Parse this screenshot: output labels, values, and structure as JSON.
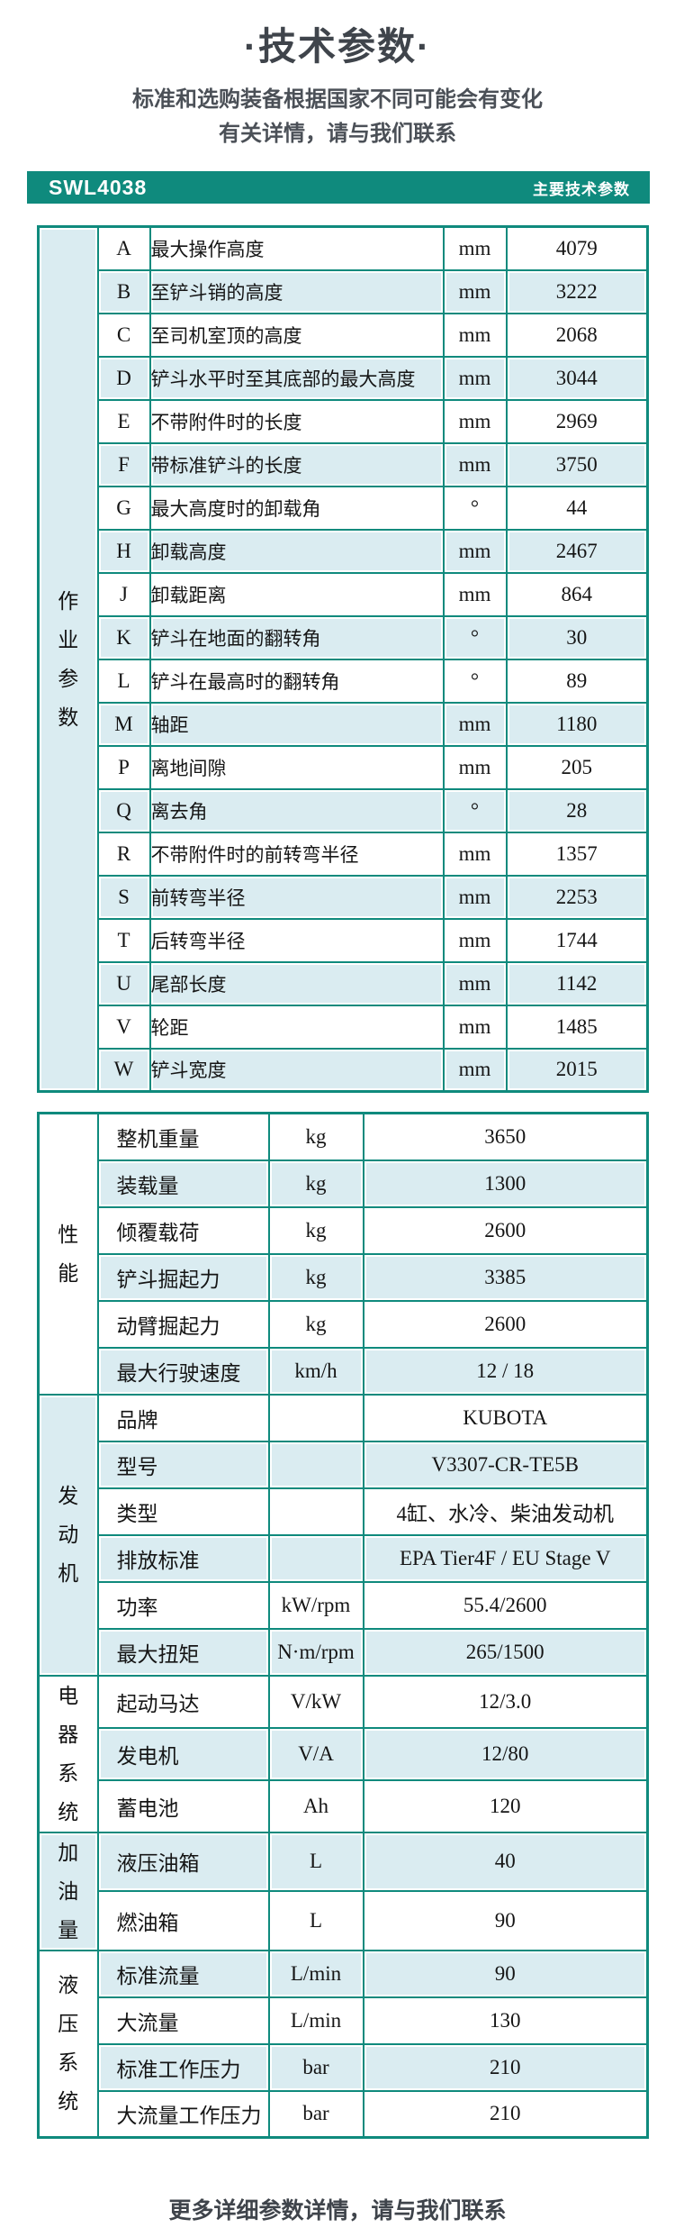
{
  "title": "·技术参数·",
  "subtitle_lines": [
    "标准和选购装备根据国家不同可能会有变化",
    "有关详情，请与我们联系"
  ],
  "header_bar": {
    "model": "SWL4038",
    "caption": "主要技术参数"
  },
  "colors": {
    "accent_teal": "#0f8a7d",
    "row_stripe_blue": "#daecf1",
    "row_plain_white": "#ffffff",
    "bar_text": "#ffffff",
    "heading_text": "#3f444b",
    "table_text": "#151515"
  },
  "operating_table": {
    "section_label": "作业参数",
    "rows": [
      {
        "letter": "A",
        "name": "最大操作高度",
        "unit": "mm",
        "value": "4079"
      },
      {
        "letter": "B",
        "name": "至铲斗销的高度",
        "unit": "mm",
        "value": "3222"
      },
      {
        "letter": "C",
        "name": "至司机室顶的高度",
        "unit": "mm",
        "value": "2068"
      },
      {
        "letter": "D",
        "name": "铲斗水平时至其底部的最大高度",
        "unit": "mm",
        "value": "3044"
      },
      {
        "letter": "E",
        "name": "不带附件时的长度",
        "unit": "mm",
        "value": "2969"
      },
      {
        "letter": "F",
        "name": "带标准铲斗的长度",
        "unit": "mm",
        "value": "3750"
      },
      {
        "letter": "G",
        "name": "最大高度时的卸载角",
        "unit": "°",
        "value": "44"
      },
      {
        "letter": "H",
        "name": "卸载高度",
        "unit": "mm",
        "value": "2467"
      },
      {
        "letter": "J",
        "name": "卸载距离",
        "unit": "mm",
        "value": "864"
      },
      {
        "letter": "K",
        "name": "铲斗在地面的翻转角",
        "unit": "°",
        "value": "30"
      },
      {
        "letter": "L",
        "name": "铲斗在最高时的翻转角",
        "unit": "°",
        "value": "89"
      },
      {
        "letter": "M",
        "name": "轴距",
        "unit": "mm",
        "value": "1180"
      },
      {
        "letter": "P",
        "name": "离地间隙",
        "unit": "mm",
        "value": "205"
      },
      {
        "letter": "Q",
        "name": "离去角",
        "unit": "°",
        "value": "28"
      },
      {
        "letter": "R",
        "name": "不带附件时的前转弯半径",
        "unit": "mm",
        "value": "1357"
      },
      {
        "letter": "S",
        "name": "前转弯半径",
        "unit": "mm",
        "value": "2253"
      },
      {
        "letter": "T",
        "name": "后转弯半径",
        "unit": "mm",
        "value": "1744"
      },
      {
        "letter": "U",
        "name": "尾部长度",
        "unit": "mm",
        "value": "1142"
      },
      {
        "letter": "V",
        "name": "轮距",
        "unit": "mm",
        "value": "1485"
      },
      {
        "letter": "W",
        "name": "铲斗宽度",
        "unit": "mm",
        "value": "2015"
      }
    ]
  },
  "spec_table": {
    "sections": [
      {
        "label": "性能",
        "rows": [
          {
            "name": "整机重量",
            "unit": "kg",
            "value": "3650"
          },
          {
            "name": "装载量",
            "unit": "kg",
            "value": "1300"
          },
          {
            "name": "倾覆载荷",
            "unit": "kg",
            "value": "2600"
          },
          {
            "name": "铲斗掘起力",
            "unit": "kg",
            "value": "3385"
          },
          {
            "name": "动臂掘起力",
            "unit": "kg",
            "value": "2600"
          },
          {
            "name": "最大行驶速度",
            "unit": "km/h",
            "value": "12 / 18"
          }
        ]
      },
      {
        "label": "发动机",
        "rows": [
          {
            "name": "品牌",
            "unit": "",
            "value": "KUBOTA"
          },
          {
            "name": "型号",
            "unit": "",
            "value": "V3307-CR-TE5B"
          },
          {
            "name": "类型",
            "unit": "",
            "value": "4缸、水冷、柴油发动机"
          },
          {
            "name": "排放标准",
            "unit": "",
            "value": "EPA Tier4F / EU Stage V"
          },
          {
            "name": "功率",
            "unit": "kW/rpm",
            "value": "55.4/2600"
          },
          {
            "name": "最大扭矩",
            "unit": "N·m/rpm",
            "value": "265/1500"
          }
        ]
      },
      {
        "label": "电器系统",
        "rows": [
          {
            "name": "起动马达",
            "unit": "V/kW",
            "value": "12/3.0"
          },
          {
            "name": "发电机",
            "unit": "V/A",
            "value": "12/80"
          },
          {
            "name": "蓄电池",
            "unit": "Ah",
            "value": "120"
          }
        ]
      },
      {
        "label": "加油量",
        "rows": [
          {
            "name": "液压油箱",
            "unit": "L",
            "value": "40"
          },
          {
            "name": "燃油箱",
            "unit": "L",
            "value": "90"
          }
        ]
      },
      {
        "label": "液压系统",
        "rows": [
          {
            "name": "标准流量",
            "unit": "L/min",
            "value": "90"
          },
          {
            "name": "大流量",
            "unit": "L/min",
            "value": "130"
          },
          {
            "name": "标准工作压力",
            "unit": "bar",
            "value": "210"
          },
          {
            "name": "大流量工作压力",
            "unit": "bar",
            "value": "210"
          }
        ]
      }
    ]
  },
  "footer": "更多详细参数详情，请与我们联系"
}
